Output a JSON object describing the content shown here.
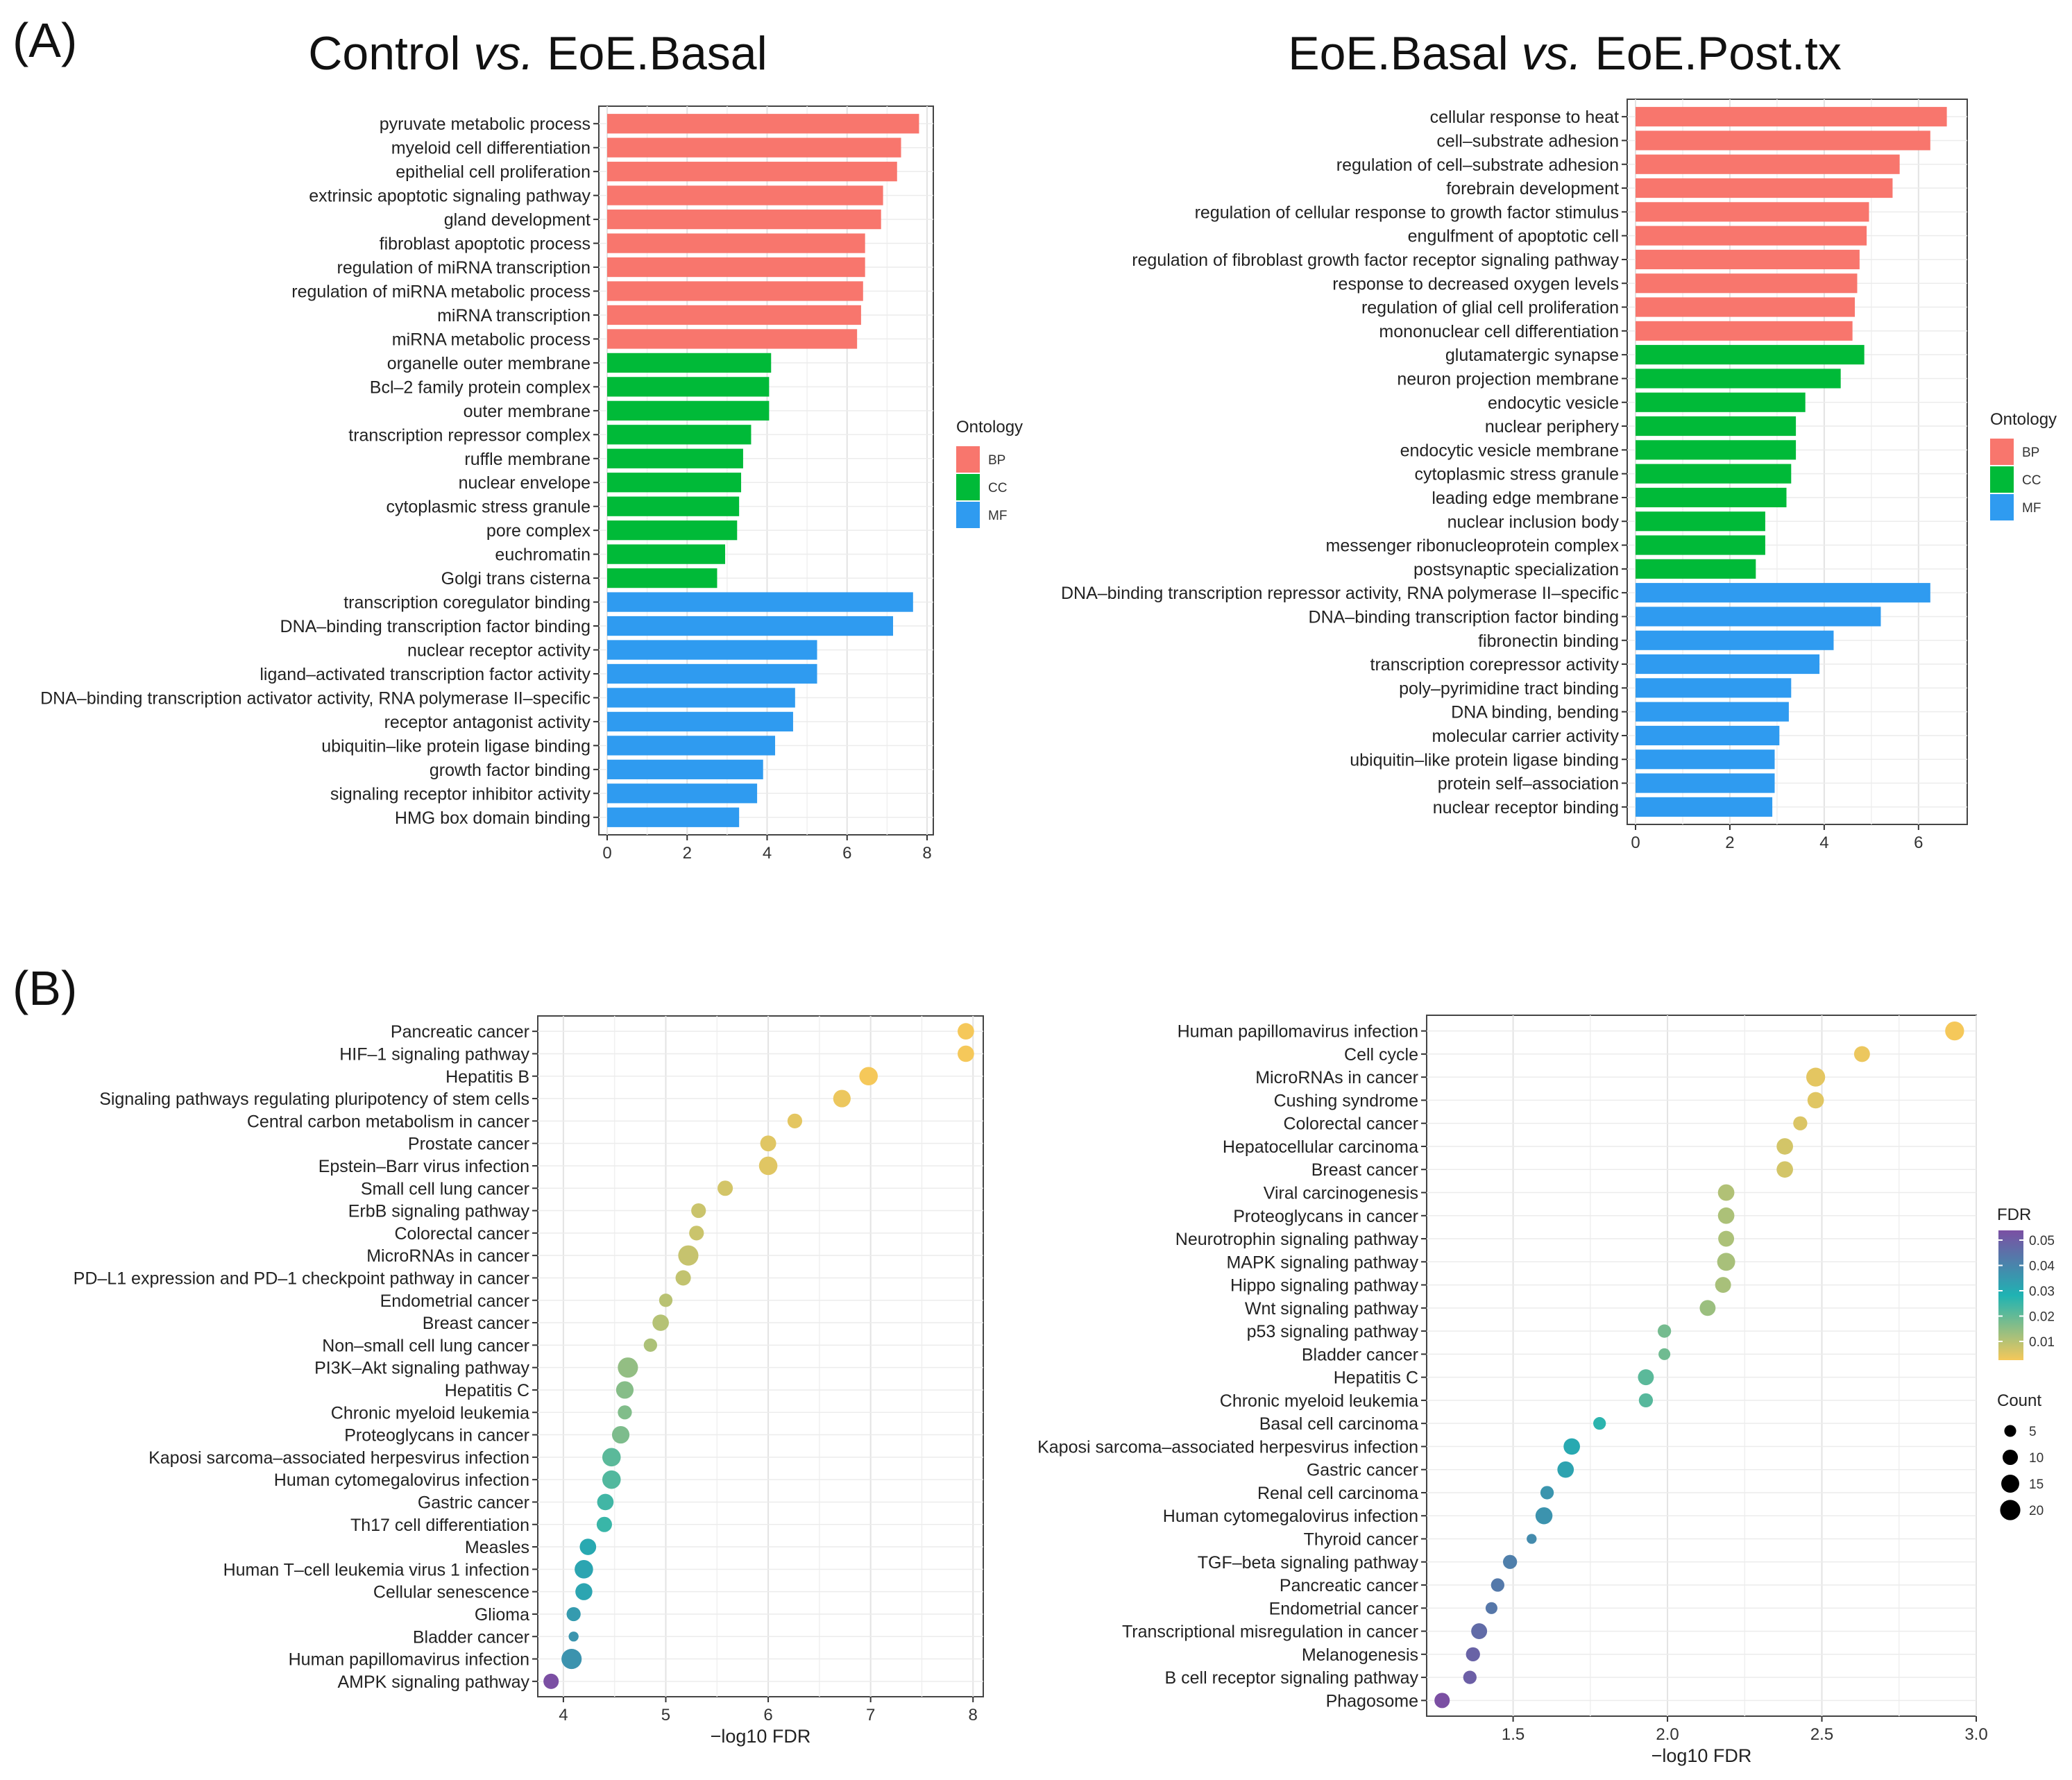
{
  "panels": {
    "a": "(A)",
    "b": "(B)"
  },
  "colors": {
    "BP": "#F8766D",
    "CC": "#00BA38",
    "MF": "#2F9BF0",
    "fdr_low": "#F5C85A",
    "fdr_high": "#7B4FA3"
  },
  "chart_data": [
    {
      "id": "A1",
      "type": "bar",
      "orientation": "horizontal",
      "title_parts": [
        "Control ",
        "vs.",
        " EoE.Basal"
      ],
      "xlim": [
        0,
        8
      ],
      "xticks": [
        0,
        2,
        4,
        6,
        8
      ],
      "categories": [
        "pyruvate metabolic process",
        "myeloid cell differentiation",
        "epithelial cell proliferation",
        "extrinsic apoptotic signaling pathway",
        "gland development",
        "fibroblast apoptotic process",
        "regulation of miRNA transcription",
        "regulation of miRNA metabolic process",
        "miRNA transcription",
        "miRNA metabolic process",
        "organelle outer membrane",
        "Bcl–2 family protein complex",
        "outer membrane",
        "transcription repressor complex",
        "ruffle membrane",
        "nuclear envelope",
        "cytoplasmic stress granule",
        "pore complex",
        "euchromatin",
        "Golgi trans cisterna",
        "transcription coregulator binding",
        "DNA–binding transcription factor binding",
        "nuclear receptor activity",
        "ligand–activated transcription factor activity",
        "DNA–binding transcription activator activity, RNA polymerase II–specific",
        "receptor antagonist activity",
        "ubiquitin–like protein ligase binding",
        "growth factor binding",
        "signaling receptor inhibitor activity",
        "HMG box domain binding"
      ],
      "values": [
        7.8,
        7.35,
        7.25,
        6.9,
        6.85,
        6.45,
        6.45,
        6.4,
        6.35,
        6.25,
        4.1,
        4.05,
        4.05,
        3.6,
        3.4,
        3.35,
        3.3,
        3.25,
        2.95,
        2.75,
        7.65,
        7.15,
        5.25,
        5.25,
        4.7,
        4.65,
        4.2,
        3.9,
        3.75,
        3.3
      ],
      "ontology": [
        "BP",
        "BP",
        "BP",
        "BP",
        "BP",
        "BP",
        "BP",
        "BP",
        "BP",
        "BP",
        "CC",
        "CC",
        "CC",
        "CC",
        "CC",
        "CC",
        "CC",
        "CC",
        "CC",
        "CC",
        "MF",
        "MF",
        "MF",
        "MF",
        "MF",
        "MF",
        "MF",
        "MF",
        "MF",
        "MF"
      ],
      "legend": {
        "title": "Ontology",
        "items": [
          "BP",
          "CC",
          "MF"
        ]
      }
    },
    {
      "id": "A2",
      "type": "bar",
      "orientation": "horizontal",
      "title_parts": [
        "EoE.Basal ",
        "vs.",
        " EoE.Post.tx"
      ],
      "xlim": [
        0,
        6.9
      ],
      "xticks": [
        0,
        2,
        4,
        6
      ],
      "categories": [
        "cellular response to heat",
        "cell–substrate adhesion",
        "regulation of cell–substrate adhesion",
        "forebrain development",
        "regulation of cellular response to growth factor stimulus",
        "engulfment of apoptotic cell",
        "regulation of fibroblast growth factor receptor signaling pathway",
        "response to decreased oxygen levels",
        "regulation of glial cell proliferation",
        "mononuclear cell differentiation",
        "glutamatergic synapse",
        "neuron projection membrane",
        "endocytic vesicle",
        "nuclear periphery",
        "endocytic vesicle membrane",
        "cytoplasmic stress granule",
        "leading edge membrane",
        "nuclear inclusion body",
        "messenger ribonucleoprotein complex",
        "postsynaptic specialization",
        "DNA–binding transcription repressor activity, RNA polymerase II–specific",
        "DNA–binding transcription factor binding",
        "fibronectin binding",
        "transcription corepressor activity",
        "poly–pyrimidine tract binding",
        "DNA binding, bending",
        "molecular carrier activity",
        "ubiquitin–like protein ligase binding",
        "protein self–association",
        "nuclear receptor binding"
      ],
      "values": [
        6.6,
        6.25,
        5.6,
        5.45,
        4.95,
        4.9,
        4.75,
        4.7,
        4.65,
        4.6,
        4.85,
        4.35,
        3.6,
        3.4,
        3.4,
        3.3,
        3.2,
        2.75,
        2.75,
        2.55,
        6.25,
        5.2,
        4.2,
        3.9,
        3.3,
        3.25,
        3.05,
        2.95,
        2.95,
        2.9
      ],
      "ontology": [
        "BP",
        "BP",
        "BP",
        "BP",
        "BP",
        "BP",
        "BP",
        "BP",
        "BP",
        "BP",
        "CC",
        "CC",
        "CC",
        "CC",
        "CC",
        "CC",
        "CC",
        "CC",
        "CC",
        "CC",
        "MF",
        "MF",
        "MF",
        "MF",
        "MF",
        "MF",
        "MF",
        "MF",
        "MF",
        "MF"
      ],
      "legend": {
        "title": "Ontology",
        "items": [
          "BP",
          "CC",
          "MF"
        ]
      }
    },
    {
      "id": "B1",
      "type": "scatter",
      "xlabel": "−log10 FDR",
      "xlim": [
        3.75,
        8.1
      ],
      "xticks": [
        4,
        5,
        6,
        7,
        8
      ],
      "categories": [
        "Pancreatic cancer",
        "HIF–1 signaling pathway",
        "Hepatitis B",
        "Signaling pathways regulating pluripotency of stem cells",
        "Central carbon metabolism in cancer",
        "Prostate cancer",
        "Epstein–Barr virus infection",
        "Small cell lung cancer",
        "ErbB signaling pathway",
        "Colorectal cancer",
        "MicroRNAs in cancer",
        "PD–L1 expression and PD–1 checkpoint pathway in cancer",
        "Endometrial cancer",
        "Breast cancer",
        "Non–small cell lung cancer",
        "PI3K–Akt signaling pathway",
        "Hepatitis C",
        "Chronic myeloid leukemia",
        "Proteoglycans in cancer",
        "Kaposi sarcoma–associated herpesvirus infection",
        "Human cytomegalovirus infection",
        "Gastric cancer",
        "Th17 cell differentiation",
        "Measles",
        "Human T–cell leukemia virus 1 infection",
        "Cellular senescence",
        "Glioma",
        "Bladder cancer",
        "Human papillomavirus infection",
        "AMPK signaling pathway"
      ],
      "x": [
        7.93,
        7.93,
        6.98,
        6.72,
        6.26,
        6.0,
        6.0,
        5.58,
        5.32,
        5.3,
        5.22,
        5.17,
        5.0,
        4.95,
        4.85,
        4.63,
        4.6,
        4.6,
        4.56,
        4.47,
        4.47,
        4.41,
        4.4,
        4.24,
        4.2,
        4.2,
        4.1,
        4.1,
        4.08,
        3.88
      ],
      "count": [
        12,
        12,
        16,
        14,
        9,
        11,
        16,
        10,
        9,
        9,
        20,
        10,
        7,
        12,
        7,
        20,
        14,
        8,
        14,
        16,
        16,
        12,
        10,
        12,
        16,
        13,
        8,
        3,
        20,
        10
      ],
      "fdr_norm": [
        0.0,
        0.0,
        0.0,
        0.02,
        0.04,
        0.05,
        0.05,
        0.08,
        0.1,
        0.1,
        0.11,
        0.12,
        0.14,
        0.15,
        0.17,
        0.23,
        0.26,
        0.27,
        0.28,
        0.36,
        0.38,
        0.42,
        0.44,
        0.55,
        0.57,
        0.57,
        0.62,
        0.65,
        0.66,
        1.0
      ]
    },
    {
      "id": "B2",
      "type": "scatter",
      "xlabel": "−log10 FDR",
      "xlim": [
        1.22,
        3.0
      ],
      "xticks": [
        1.5,
        2.0,
        2.5,
        3.0
      ],
      "xtick_labels": [
        "1.5",
        "2.0",
        "2.5",
        "3.0"
      ],
      "categories": [
        "Human papillomavirus infection",
        "Cell cycle",
        "MicroRNAs in cancer",
        "Cushing syndrome",
        "Colorectal cancer",
        "Hepatocellular carcinoma",
        "Breast cancer",
        "Viral carcinogenesis",
        "Proteoglycans in cancer",
        "Neurotrophin signaling pathway",
        "MAPK signaling pathway",
        "Hippo signaling pathway",
        "Wnt signaling pathway",
        "p53 signaling pathway",
        "Bladder cancer",
        "Hepatitis C",
        "Chronic myeloid leukemia",
        "Basal cell carcinoma",
        "Kaposi sarcoma–associated herpesvirus infection",
        "Gastric cancer",
        "Renal cell carcinoma",
        "Human cytomegalovirus infection",
        "Thyroid cancer",
        "TGF–beta signaling pathway",
        "Pancreatic cancer",
        "Endometrial cancer",
        "Transcriptional misregulation in cancer",
        "Melanogenesis",
        "B cell receptor signaling pathway",
        "Phagosome"
      ],
      "x": [
        2.93,
        2.63,
        2.48,
        2.48,
        2.43,
        2.38,
        2.38,
        2.19,
        2.19,
        2.19,
        2.19,
        2.18,
        2.13,
        1.99,
        1.99,
        1.93,
        1.93,
        1.78,
        1.69,
        1.67,
        1.61,
        1.6,
        1.56,
        1.49,
        1.45,
        1.43,
        1.39,
        1.37,
        1.36,
        1.27
      ],
      "count": [
        17,
        11,
        17,
        12,
        8,
        12,
        12,
        12,
        12,
        11,
        15,
        11,
        11,
        7,
        5,
        11,
        8,
        6,
        12,
        12,
        7,
        13,
        3,
        8,
        7,
        5,
        11,
        8,
        7,
        10
      ],
      "fdr_norm": [
        0.0,
        0.02,
        0.04,
        0.05,
        0.06,
        0.08,
        0.08,
        0.16,
        0.17,
        0.17,
        0.18,
        0.18,
        0.21,
        0.3,
        0.31,
        0.36,
        0.37,
        0.47,
        0.55,
        0.58,
        0.65,
        0.66,
        0.7,
        0.76,
        0.79,
        0.8,
        0.86,
        0.9,
        0.92,
        1.0
      ]
    }
  ],
  "legend_fdr": {
    "title": "FDR",
    "ticks": [
      "0.05",
      "0.04",
      "0.03",
      "0.02",
      "0.01"
    ]
  },
  "legend_count": {
    "title": "Count",
    "ticks": [
      "5",
      "10",
      "15",
      "20"
    ],
    "sizes": [
      5,
      10,
      15,
      20
    ]
  }
}
